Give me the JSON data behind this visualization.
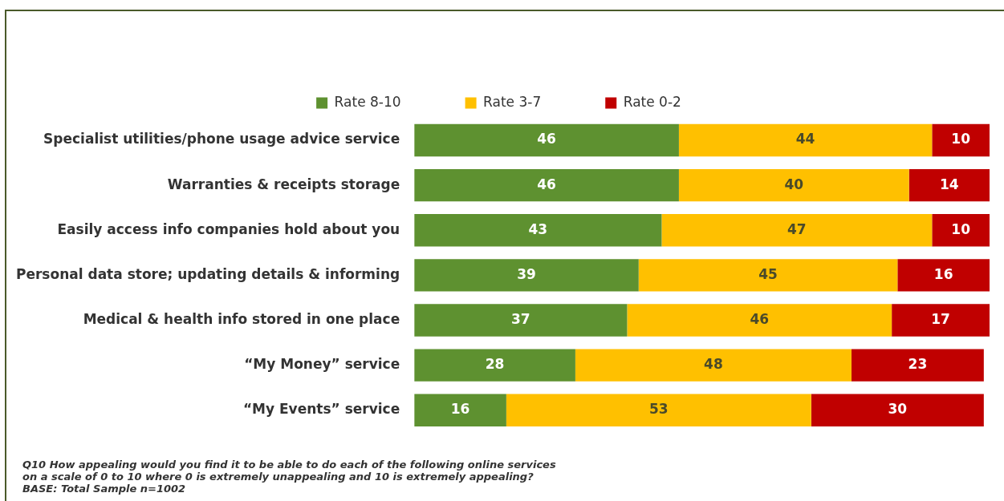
{
  "chart_data": {
    "type": "bar",
    "orientation": "horizontal",
    "stacked": true,
    "categories": [
      "Specialist utilities/phone usage advice service",
      "Warranties & receipts storage",
      "Easily access info companies hold about you",
      "Personal data store; updating details & informing",
      "Medical & health info stored in one place",
      "“My Money” service",
      "“My Events” service"
    ],
    "series": [
      {
        "name": "Rate 8-10",
        "color": "#5e9130",
        "values": [
          46,
          46,
          43,
          39,
          37,
          28,
          16
        ]
      },
      {
        "name": "Rate 3-7",
        "color": "#ffc000",
        "values": [
          44,
          40,
          47,
          45,
          46,
          48,
          53
        ]
      },
      {
        "name": "Rate 0-2",
        "color": "#c00000",
        "values": [
          10,
          14,
          10,
          16,
          17,
          23,
          30
        ]
      }
    ],
    "xlim": [
      0,
      100
    ],
    "tick_labels": "y",
    "legend": "top",
    "data_labels": true,
    "annotations": [
      "Q10 How appealing would you find it to be able to do each of the following online services",
      "on a scale of 0 to 10 where 0 is extremely unappealing and 10 is extremely appealing?",
      "BASE: Total Sample n=1002"
    ]
  }
}
